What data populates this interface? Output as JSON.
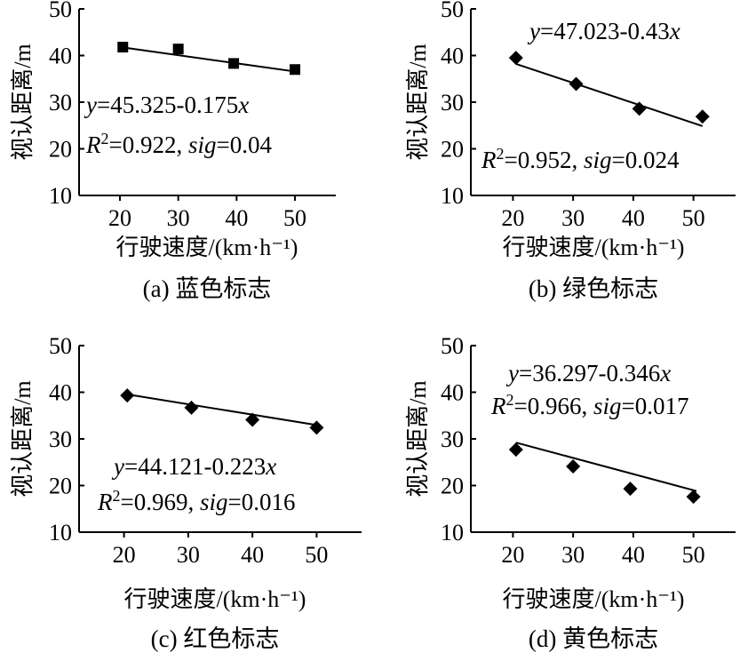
{
  "chart_data": [
    {
      "id": "a",
      "type": "scatter",
      "marker": "square",
      "caption": "(a) 蓝色标志",
      "xlabel": "行驶速度/(km·h⁻¹)",
      "ylabel": "视认距离/m",
      "xlim": [
        13,
        57
      ],
      "ylim": [
        10,
        50
      ],
      "xticks": [
        20,
        30,
        40,
        50
      ],
      "yticks": [
        10,
        20,
        30,
        40,
        50
      ],
      "points": [
        {
          "x": 20.5,
          "y": 41.8
        },
        {
          "x": 30.0,
          "y": 41.4
        },
        {
          "x": 39.5,
          "y": 38.3
        },
        {
          "x": 50.0,
          "y": 37.0
        }
      ],
      "fit": {
        "intercept": 45.325,
        "slope": -0.175,
        "x_from": 20.5,
        "x_to": 50.5
      },
      "equation_parts": [
        {
          "t": "y",
          "it": true
        },
        {
          "t": "=45.325-0.175"
        },
        {
          "t": "x",
          "it": true
        }
      ],
      "stats_parts": [
        {
          "t": "R",
          "it": true
        },
        {
          "t": "2",
          "sup": true
        },
        {
          "t": "=0.922, "
        },
        {
          "t": "sig",
          "it": true
        },
        {
          "t": "=0.04"
        }
      ]
    },
    {
      "id": "b",
      "type": "scatter",
      "marker": "diamond",
      "caption": "(b) 绿色标志",
      "xlabel": "行驶速度/(km·h⁻¹)",
      "ylabel": "视认距离/m",
      "xlim": [
        13,
        57
      ],
      "ylim": [
        10,
        50
      ],
      "xticks": [
        20,
        30,
        40,
        50
      ],
      "yticks": [
        10,
        20,
        30,
        40,
        50
      ],
      "points": [
        {
          "x": 20.5,
          "y": 39.5
        },
        {
          "x": 30.5,
          "y": 33.9
        },
        {
          "x": 41.0,
          "y": 28.6
        },
        {
          "x": 51.5,
          "y": 26.9
        }
      ],
      "fit": {
        "intercept": 47.023,
        "slope": -0.43,
        "x_from": 20.5,
        "x_to": 51.5
      },
      "equation_parts": [
        {
          "t": "y",
          "it": true
        },
        {
          "t": "=47.023-0.43"
        },
        {
          "t": "x",
          "it": true
        }
      ],
      "stats_parts": [
        {
          "t": "R",
          "it": true
        },
        {
          "t": "2",
          "sup": true
        },
        {
          "t": "=0.952, "
        },
        {
          "t": "sig",
          "it": true
        },
        {
          "t": "=0.024"
        }
      ]
    },
    {
      "id": "c",
      "type": "scatter",
      "marker": "diamond",
      "caption": "(c) 红色标志",
      "xlabel": "行驶速度/(km·h⁻¹)",
      "ylabel": "视认距离/m",
      "xlim": [
        13,
        57
      ],
      "ylim": [
        10,
        50
      ],
      "xticks": [
        20,
        30,
        40,
        50
      ],
      "yticks": [
        10,
        20,
        30,
        40,
        50
      ],
      "points": [
        {
          "x": 20.5,
          "y": 39.3
        },
        {
          "x": 30.5,
          "y": 36.7
        },
        {
          "x": 40.0,
          "y": 34.1
        },
        {
          "x": 50.0,
          "y": 32.4
        }
      ],
      "fit": {
        "intercept": 44.121,
        "slope": -0.223,
        "x_from": 20.5,
        "x_to": 50.5
      },
      "equation_parts": [
        {
          "t": "y",
          "it": true
        },
        {
          "t": "=44.121-0.223"
        },
        {
          "t": "x",
          "it": true
        }
      ],
      "stats_parts": [
        {
          "t": "R",
          "it": true
        },
        {
          "t": "2",
          "sup": true
        },
        {
          "t": "=0.969, "
        },
        {
          "t": "sig",
          "it": true
        },
        {
          "t": "=0.016"
        }
      ]
    },
    {
      "id": "d",
      "type": "scatter",
      "marker": "diamond",
      "caption": "(d) 黄色标志",
      "xlabel": "行驶速度/(km·h⁻¹)",
      "ylabel": "视认距离/m",
      "xlim": [
        13,
        57
      ],
      "ylim": [
        10,
        50
      ],
      "xticks": [
        20,
        30,
        40,
        50
      ],
      "yticks": [
        10,
        20,
        30,
        40,
        50
      ],
      "points": [
        {
          "x": 20.5,
          "y": 27.7
        },
        {
          "x": 30.0,
          "y": 24.1
        },
        {
          "x": 39.5,
          "y": 19.3
        },
        {
          "x": 50.0,
          "y": 17.6
        }
      ],
      "fit": {
        "intercept": 36.297,
        "slope": -0.346,
        "x_from": 20.5,
        "x_to": 50.5
      },
      "equation_parts": [
        {
          "t": "y",
          "it": true
        },
        {
          "t": "=36.297-0.346"
        },
        {
          "t": "x",
          "it": true
        }
      ],
      "stats_parts": [
        {
          "t": "R",
          "it": true
        },
        {
          "t": "2",
          "sup": true
        },
        {
          "t": "=0.966, "
        },
        {
          "t": "sig",
          "it": true
        },
        {
          "t": "=0.017"
        }
      ]
    }
  ]
}
